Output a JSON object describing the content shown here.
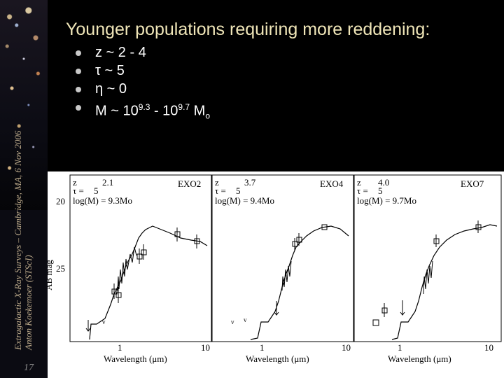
{
  "sidebar": {
    "line1": "Extragalactic X-Ray Surveys – Cambridge, MA, 6 Nov 2006",
    "line2": "Anton Koekemoer (STScI)",
    "slide_number": "17"
  },
  "title": "Younger populations requiring more reddening:",
  "bullets": [
    {
      "text": "z ~ 2 - 4"
    },
    {
      "text": "τ ~ 5"
    },
    {
      "text": "η ~ 0"
    },
    {
      "text_pre": "M ~ 10",
      "exp1": "9.3",
      "text_mid": " - 10",
      "exp2": "9.7",
      "text_post": " M",
      "sub": "o"
    }
  ],
  "figure": {
    "ylabel": "AB mag",
    "xlabel": "Wavelength (μm)",
    "y_ticks": [
      "20",
      "25"
    ],
    "x_ticks": [
      "1",
      "10"
    ],
    "panels": [
      {
        "name": "EXO2",
        "z_label": "z",
        "z_val": "2.1",
        "tau_label": "τ =",
        "tau_val": "5",
        "mass_label": "log(M) = 9.3Mo"
      },
      {
        "name": "EXO4",
        "z_label": "z",
        "z_val": "3.7",
        "tau_label": "τ =",
        "tau_val": "5",
        "mass_label": "log(M) = 9.4Mo"
      },
      {
        "name": "EXO7",
        "z_label": "z",
        "z_val": "4.0",
        "tau_label": "τ =",
        "tau_val": "5",
        "mass_label": "log(M) = 9.7Mo"
      }
    ]
  }
}
